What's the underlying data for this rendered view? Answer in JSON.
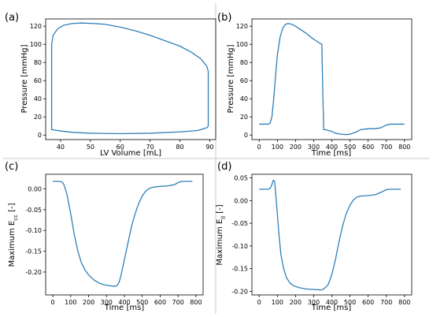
{
  "chart_data": [
    {
      "type": "line",
      "panel": "(a)",
      "xlabel": "LV Volume [mL]",
      "ylabel": "Pressure [mmHg]",
      "xlim": [
        35,
        92
      ],
      "ylim": [
        -5,
        128
      ],
      "xticks": [
        40,
        50,
        60,
        70,
        80,
        90
      ],
      "yticks": [
        0,
        20,
        40,
        60,
        80,
        100,
        120
      ],
      "grid": false,
      "series": [
        {
          "color": "#2f7fb8",
          "closed": true,
          "x": [
            37,
            37,
            37.5,
            39,
            41,
            44,
            47,
            51,
            55,
            60,
            65,
            70,
            75,
            80,
            84,
            87,
            89,
            89.5,
            89.5,
            89,
            86,
            80,
            70,
            60,
            50,
            44,
            40,
            37
          ],
          "y": [
            6,
            100,
            110,
            117,
            121,
            123,
            123.5,
            123,
            122,
            119,
            115,
            110,
            104,
            98,
            91,
            84,
            76,
            70,
            10,
            8,
            5,
            3.5,
            2,
            1.5,
            2,
            3,
            4.5,
            6
          ]
        }
      ]
    },
    {
      "type": "line",
      "panel": "(b)",
      "xlabel": "Time [ms]",
      "ylabel": "Pressure [mmHg]",
      "xlim": [
        -40,
        840
      ],
      "ylim": [
        -5,
        128
      ],
      "xticks": [
        0,
        100,
        200,
        300,
        400,
        500,
        600,
        700,
        800
      ],
      "yticks": [
        0,
        20,
        40,
        60,
        80,
        100,
        120
      ],
      "grid": false,
      "series": [
        {
          "color": "#2f7fb8",
          "x": [
            0,
            50,
            60,
            70,
            80,
            90,
            100,
            115,
            130,
            145,
            160,
            180,
            200,
            230,
            260,
            290,
            320,
            345,
            350,
            355,
            365,
            380,
            400,
            420,
            450,
            480,
            500,
            530,
            560,
            600,
            640,
            670,
            700,
            720,
            750,
            800
          ],
          "y": [
            12,
            12,
            13,
            20,
            40,
            65,
            88,
            108,
            118,
            122,
            123,
            122,
            120,
            116,
            112,
            107,
            103,
            100,
            50,
            6,
            6,
            5,
            4,
            2,
            1,
            0.5,
            1,
            3,
            6,
            7,
            7,
            8,
            11,
            12,
            12,
            12
          ]
        }
      ]
    },
    {
      "type": "line",
      "panel": "(c)",
      "xlabel": "Time [ms]",
      "ylabel": "Maximum E_cc [-]",
      "xlim": [
        -40,
        840
      ],
      "ylim": [
        -0.255,
        0.035
      ],
      "xticks": [
        0,
        100,
        200,
        300,
        400,
        500,
        600,
        700,
        800
      ],
      "yticks": [
        0.0,
        -0.05,
        -0.1,
        -0.15,
        -0.2
      ],
      "ytick_labels": [
        "0.00",
        "-0.05",
        "-0.10",
        "-0.15",
        "-0.20"
      ],
      "grid": false,
      "series": [
        {
          "color": "#2f7fb8",
          "x": [
            0,
            30,
            50,
            60,
            70,
            80,
            100,
            120,
            140,
            160,
            180,
            200,
            230,
            260,
            290,
            320,
            340,
            350,
            360,
            370,
            380,
            400,
            420,
            440,
            460,
            480,
            500,
            520,
            540,
            560,
            580,
            600,
            640,
            680,
            700,
            720,
            760,
            780
          ],
          "y": [
            0.018,
            0.018,
            0.017,
            0.012,
            0.0,
            -0.015,
            -0.06,
            -0.11,
            -0.15,
            -0.178,
            -0.195,
            -0.207,
            -0.219,
            -0.227,
            -0.231,
            -0.233,
            -0.234,
            -0.234,
            -0.232,
            -0.225,
            -0.21,
            -0.17,
            -0.13,
            -0.09,
            -0.06,
            -0.035,
            -0.017,
            -0.005,
            0.001,
            0.004,
            0.005,
            0.006,
            0.007,
            0.01,
            0.015,
            0.018,
            0.018,
            0.018
          ]
        }
      ]
    },
    {
      "type": "line",
      "panel": "(d)",
      "xlabel": "Time [ms]",
      "ylabel": "Maximum E_ll [-]",
      "xlim": [
        -40,
        840
      ],
      "ylim": [
        -0.208,
        0.058
      ],
      "xticks": [
        0,
        100,
        200,
        300,
        400,
        500,
        600,
        700,
        800
      ],
      "yticks": [
        0.05,
        0.0,
        -0.05,
        -0.1,
        -0.15,
        -0.2
      ],
      "ytick_labels": [
        "0.05",
        "0.00",
        "-0.05",
        "-0.10",
        "-0.15",
        "-0.20"
      ],
      "grid": false,
      "series": [
        {
          "color": "#2f7fb8",
          "x": [
            0,
            50,
            60,
            70,
            78,
            85,
            90,
            100,
            110,
            120,
            135,
            150,
            170,
            190,
            220,
            260,
            300,
            340,
            350,
            360,
            370,
            380,
            400,
            420,
            440,
            460,
            480,
            500,
            520,
            540,
            560,
            600,
            640,
            680,
            700,
            720,
            760,
            780
          ],
          "y": [
            0.025,
            0.025,
            0.027,
            0.035,
            0.045,
            0.042,
            0.02,
            -0.03,
            -0.08,
            -0.12,
            -0.15,
            -0.17,
            -0.182,
            -0.188,
            -0.192,
            -0.195,
            -0.196,
            -0.197,
            -0.196,
            -0.193,
            -0.19,
            -0.185,
            -0.163,
            -0.13,
            -0.09,
            -0.055,
            -0.028,
            -0.01,
            0.002,
            0.008,
            0.01,
            0.011,
            0.013,
            0.02,
            0.024,
            0.025,
            0.025,
            0.025
          ]
        }
      ]
    }
  ],
  "panels": [
    {
      "letter": "(a)",
      "xlabel": "LV Volume [mL]",
      "ylabel": "Pressure [mmHg]"
    },
    {
      "letter": "(b)",
      "xlabel": "Time [ms]",
      "ylabel": "Pressure [mmHg]"
    },
    {
      "letter": "(c)",
      "xlabel": "Time [ms]",
      "ylabel_main": "Maximum E",
      "ylabel_sub": "cc",
      "ylabel_tail": " [-]"
    },
    {
      "letter": "(d)",
      "xlabel": "Time [ms]",
      "ylabel_main": "Maximum E",
      "ylabel_sub": "ll",
      "ylabel_tail": " [-]"
    }
  ]
}
